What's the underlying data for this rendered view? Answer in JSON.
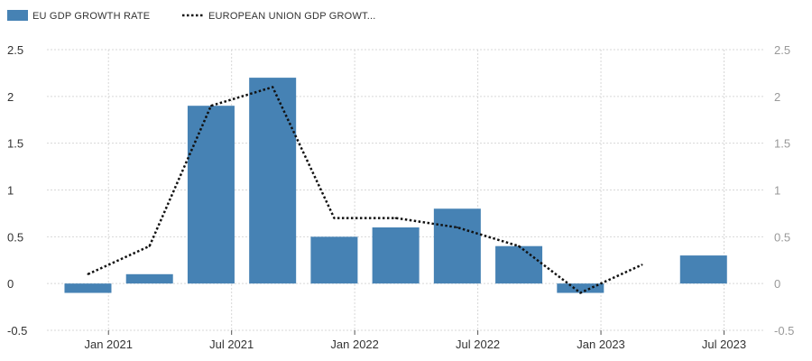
{
  "chart_data": {
    "type": "bar",
    "title": "",
    "legend_position": "top-left",
    "colors": {
      "bar": "#4682b4",
      "line": "#111111",
      "grid": "#d7d7d7"
    },
    "series": [
      {
        "name": "EU GDP GROWTH RATE",
        "type": "bar",
        "x": [
          "2020-12",
          "2021-03",
          "2021-06",
          "2021-09",
          "2021-12",
          "2022-03",
          "2022-06",
          "2022-09",
          "2022-12",
          "2023-06"
        ],
        "values": [
          -0.1,
          0.1,
          1.9,
          2.2,
          0.5,
          0.6,
          0.8,
          0.4,
          -0.1,
          0.3
        ]
      },
      {
        "name": "EUROPEAN UNION GDP GROWT...",
        "type": "line",
        "style": "dotted",
        "x": [
          "2020-12",
          "2021-03",
          "2021-06",
          "2021-09",
          "2021-12",
          "2022-03",
          "2022-06",
          "2022-09",
          "2022-12",
          "2023-03"
        ],
        "values": [
          0.1,
          0.4,
          1.9,
          2.1,
          0.7,
          0.7,
          0.6,
          0.4,
          -0.1,
          0.2
        ]
      }
    ],
    "x_ticks": [
      {
        "date": "2021-01",
        "label": "Jan 2021"
      },
      {
        "date": "2021-07",
        "label": "Jul 2021"
      },
      {
        "date": "2022-01",
        "label": "Jan 2022"
      },
      {
        "date": "2022-07",
        "label": "Jul 2022"
      },
      {
        "date": "2023-01",
        "label": "Jan 2023"
      },
      {
        "date": "2023-07",
        "label": "Jul 2023"
      }
    ],
    "x_range": [
      "2020-10",
      "2023-09"
    ],
    "y_ticks": [
      {
        "value": 2.5,
        "label": "2.5"
      },
      {
        "value": 2,
        "label": "2"
      },
      {
        "value": 1.5,
        "label": "1.5"
      },
      {
        "value": 1,
        "label": "1"
      },
      {
        "value": 0.5,
        "label": "0.5"
      },
      {
        "value": 0,
        "label": "0"
      },
      {
        "value": -0.5,
        "label": "-0.5"
      }
    ],
    "ylim": [
      -0.5,
      2.5
    ],
    "grid": true
  }
}
